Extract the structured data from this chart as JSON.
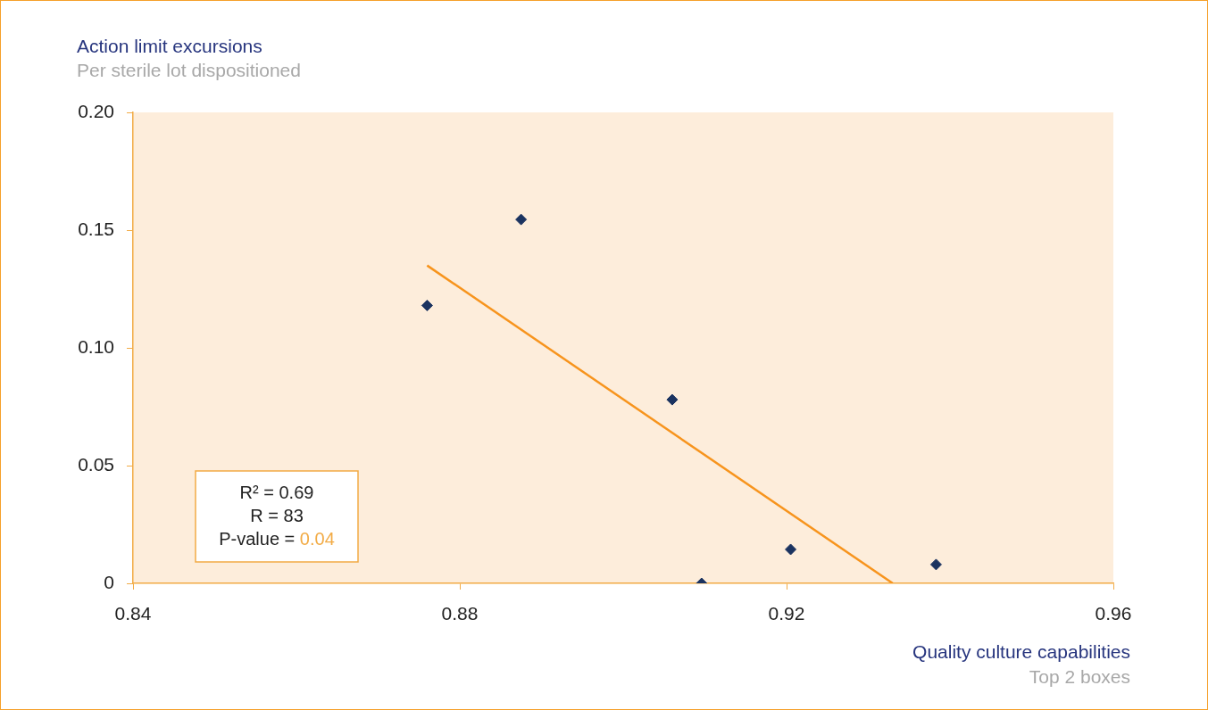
{
  "chart_data": {
    "type": "scatter",
    "ylabel": "Action limit excursions",
    "subtitle": "Per sterile lot dispositioned",
    "xlabel": "Quality culture capabilities",
    "annotations": [
      "Top 2 boxes",
      "R² = 0.69",
      "R = 83",
      "P-value = 0.04"
    ],
    "xlim": [
      0.84,
      0.96
    ],
    "xticks": [
      0.84,
      0.88,
      0.92,
      0.96
    ],
    "ylim": [
      0,
      0.2
    ],
    "yticks": [
      0,
      0.05,
      {
        "value": 0.1,
        "label": "0.10"
      },
      0.15,
      {
        "value": 0.2,
        "label": "0.20"
      }
    ],
    "marker": "diamond",
    "series": [
      {
        "color": "#1b3360",
        "x": [
          0.876,
          0.8875,
          0.906,
          0.9096,
          0.9205,
          0.9383
        ],
        "values": [
          0.118,
          0.1545,
          0.078,
          0,
          0.0144,
          0.008
        ]
      },
      {
        "type": "line",
        "marker": "none",
        "color": "#f7941d",
        "x": [
          0.876,
          0.933
        ],
        "values": [
          0.135,
          0
        ]
      }
    ]
  }
}
